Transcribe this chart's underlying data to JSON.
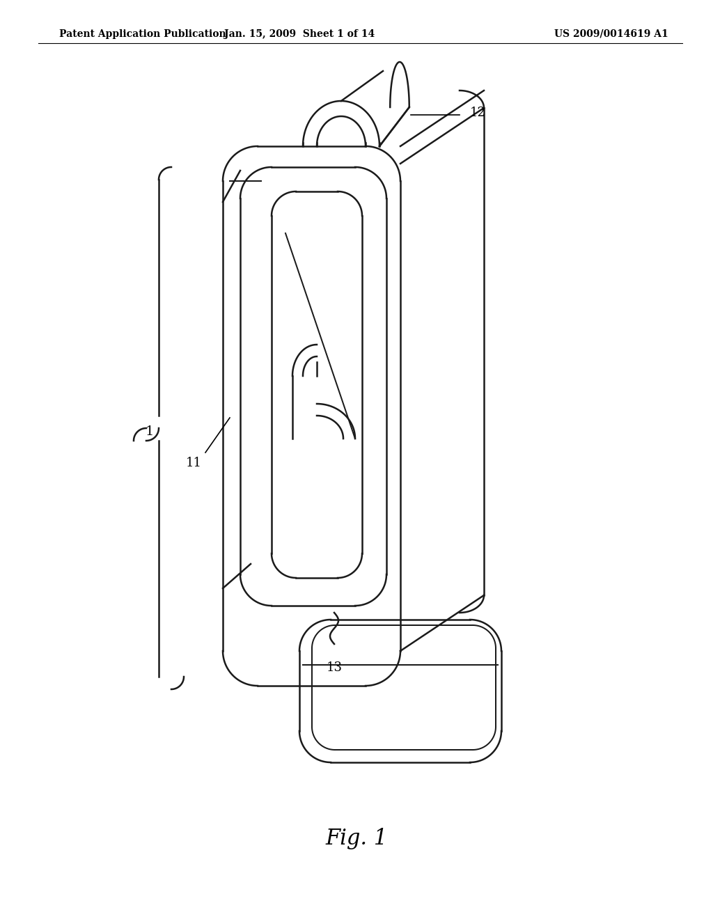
{
  "title": "Fig. 1",
  "header_left": "Patent Application Publication",
  "header_center": "Jan. 15, 2009  Sheet 1 of 14",
  "header_right": "US 2009/0014619 A1",
  "label_1": "1",
  "label_11": "11",
  "label_12": "12",
  "label_13": "13",
  "bg_color": "#ffffff",
  "line_color": "#1a1a1a",
  "header_fontsize": 10,
  "title_fontsize": 22,
  "label_fontsize": 13
}
